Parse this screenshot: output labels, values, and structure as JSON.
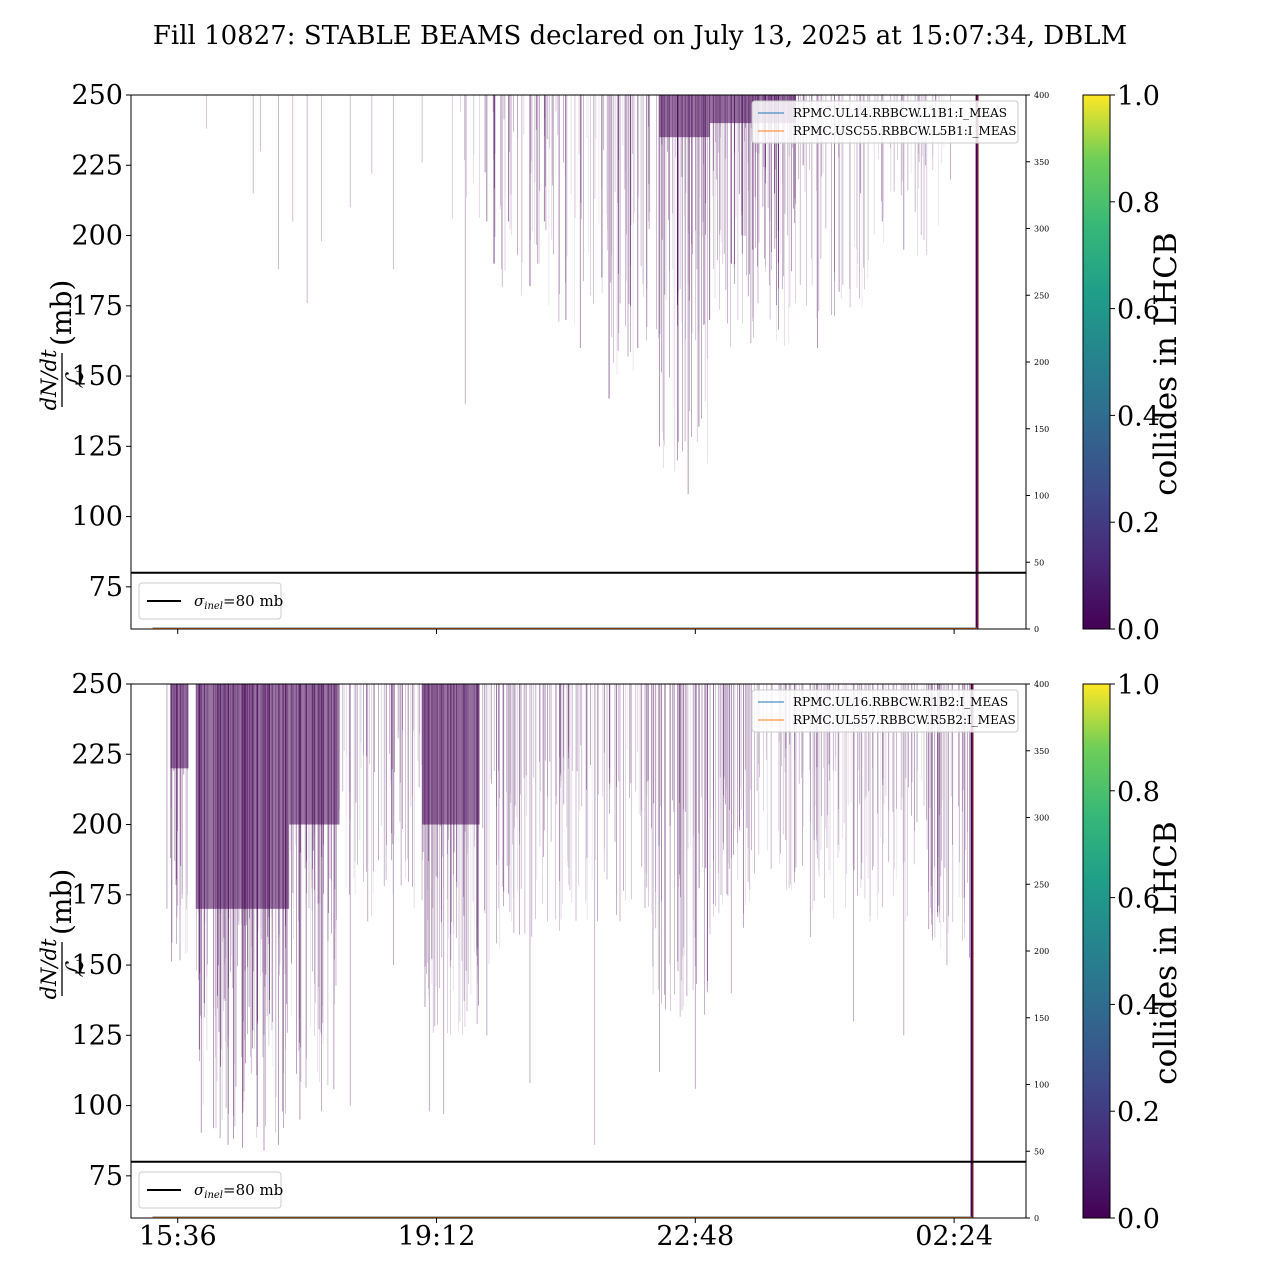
{
  "title": "Fill 10827: STABLE BEAMS declared on July 13, 2025 at 15:07:34, DBLM",
  "chart_data": [
    {
      "type": "line",
      "panel": "top",
      "ylabel": "dN/dt / ℒ (mb)",
      "ylim": [
        60,
        250
      ],
      "yticks": [
        "75",
        "100",
        "125",
        "150",
        "175",
        "200",
        "225",
        "250"
      ],
      "ytick_values": [
        75,
        100,
        125,
        150,
        175,
        200,
        225,
        250
      ],
      "y2lim": [
        0,
        400
      ],
      "y2ticks": [
        "0",
        "50",
        "100",
        "150",
        "200",
        "250",
        "300",
        "350",
        "400"
      ],
      "y2tick_values": [
        0,
        50,
        100,
        150,
        200,
        250,
        300,
        350,
        400
      ],
      "xlim_hours": [
        14.95,
        27.4
      ],
      "xticks": [],
      "xtick_hours": [
        15.6,
        19.2,
        22.8,
        26.4
      ],
      "legend": [
        {
          "name": "RPMC.UL14.RBBCW.L1B1:I_MEAS",
          "color": "#1f77b4"
        },
        {
          "name": "RPMC.USC55.RBBCW.L5B1:I_MEAS",
          "color": "#ff7f0e"
        }
      ],
      "sigma_line": {
        "value": 80,
        "label_sym": "σ",
        "label_sub": "inel",
        "label_rest": "=80 mb"
      },
      "colorbar": {
        "label": "collides in LHCB",
        "range": [
          0.0,
          1.0
        ],
        "ticks": [
          "0.0",
          "0.2",
          "0.4",
          "0.6",
          "0.8",
          "1.0"
        ]
      },
      "spikes": [
        {
          "t": 16.0,
          "min": 238,
          "op": 0.25
        },
        {
          "t": 16.65,
          "min": 215,
          "op": 0.35
        },
        {
          "t": 16.75,
          "min": 230,
          "op": 0.3
        },
        {
          "t": 17.0,
          "min": 188,
          "op": 0.35
        },
        {
          "t": 17.2,
          "min": 205,
          "op": 0.3
        },
        {
          "t": 17.4,
          "min": 176,
          "op": 0.35
        },
        {
          "t": 17.6,
          "min": 198,
          "op": 0.3
        },
        {
          "t": 18.0,
          "min": 210,
          "op": 0.3
        },
        {
          "t": 18.3,
          "min": 222,
          "op": 0.3
        },
        {
          "t": 18.6,
          "min": 188,
          "op": 0.3
        },
        {
          "t": 19.0,
          "min": 226,
          "op": 0.3
        },
        {
          "t": 19.6,
          "min": 140,
          "op": 0.35
        },
        {
          "t": 19.9,
          "min": 205,
          "op": 0.6
        },
        {
          "t": 20.0,
          "min": 190,
          "op": 0.9
        },
        {
          "t": 20.2,
          "min": 205,
          "op": 0.6
        },
        {
          "t": 20.5,
          "min": 182,
          "op": 0.7
        },
        {
          "t": 20.7,
          "min": 205,
          "op": 0.6
        },
        {
          "t": 21.0,
          "min": 170,
          "op": 0.6
        },
        {
          "t": 21.2,
          "min": 160,
          "op": 0.5
        },
        {
          "t": 21.5,
          "min": 185,
          "op": 0.6
        },
        {
          "t": 21.6,
          "min": 142,
          "op": 0.7
        },
        {
          "t": 21.9,
          "min": 175,
          "op": 0.6
        },
        {
          "t": 22.0,
          "min": 160,
          "op": 0.6
        },
        {
          "t": 22.3,
          "min": 125,
          "op": 0.5
        },
        {
          "t": 22.55,
          "min": 120,
          "op": 0.5
        },
        {
          "t": 22.7,
          "min": 108,
          "op": 0.5
        },
        {
          "t": 22.85,
          "min": 132,
          "op": 0.6
        },
        {
          "t": 23.0,
          "min": 170,
          "op": 0.7
        },
        {
          "t": 23.3,
          "min": 190,
          "op": 0.8
        },
        {
          "t": 23.6,
          "min": 195,
          "op": 0.7
        },
        {
          "t": 23.9,
          "min": 215,
          "op": 0.6
        },
        {
          "t": 24.3,
          "min": 225,
          "op": 0.6
        },
        {
          "t": 24.5,
          "min": 160,
          "op": 0.5
        },
        {
          "t": 24.8,
          "min": 180,
          "op": 0.5
        },
        {
          "t": 25.1,
          "min": 215,
          "op": 0.5
        },
        {
          "t": 25.4,
          "min": 205,
          "op": 0.5
        },
        {
          "t": 25.7,
          "min": 195,
          "op": 0.5
        },
        {
          "t": 26.0,
          "min": 225,
          "op": 0.4
        },
        {
          "t": 26.35,
          "min": 220,
          "op": 0.4
        }
      ],
      "bands": [
        {
          "t0": 19.4,
          "t1": 19.9,
          "density": 0.18,
          "min_lo": 200,
          "min_hi": 245
        },
        {
          "t0": 19.9,
          "t1": 20.9,
          "density": 0.45,
          "min_lo": 175,
          "min_hi": 245
        },
        {
          "t0": 20.9,
          "t1": 21.5,
          "density": 0.35,
          "min_lo": 165,
          "min_hi": 245
        },
        {
          "t0": 21.5,
          "t1": 22.3,
          "density": 0.6,
          "min_lo": 150,
          "min_hi": 240
        },
        {
          "t0": 22.3,
          "t1": 23.0,
          "density": 0.85,
          "min_lo": 115,
          "min_hi": 235
        },
        {
          "t0": 23.0,
          "t1": 24.2,
          "density": 0.9,
          "min_lo": 160,
          "min_hi": 240
        },
        {
          "t0": 24.2,
          "t1": 25.2,
          "density": 0.4,
          "min_lo": 170,
          "min_hi": 245
        },
        {
          "t0": 25.2,
          "t1": 26.3,
          "density": 0.35,
          "min_lo": 190,
          "min_hi": 248
        }
      ],
      "dump_hour": 26.72
    },
    {
      "type": "line",
      "panel": "bottom",
      "ylabel": "dN/dt / ℒ (mb)",
      "ylim": [
        60,
        250
      ],
      "yticks": [
        "75",
        "100",
        "125",
        "150",
        "175",
        "200",
        "225",
        "250"
      ],
      "ytick_values": [
        75,
        100,
        125,
        150,
        175,
        200,
        225,
        250
      ],
      "y2lim": [
        0,
        400
      ],
      "y2ticks": [
        "0",
        "50",
        "100",
        "150",
        "200",
        "250",
        "300",
        "350",
        "400"
      ],
      "y2tick_values": [
        0,
        50,
        100,
        150,
        200,
        250,
        300,
        350,
        400
      ],
      "xlim_hours": [
        14.95,
        27.4
      ],
      "xticks": [
        "15:36",
        "19:12",
        "22:48",
        "02:24"
      ],
      "xtick_hours": [
        15.6,
        19.2,
        22.8,
        26.4
      ],
      "legend": [
        {
          "name": "RPMC.UL16.RBBCW.R1B2:I_MEAS",
          "color": "#1f77b4"
        },
        {
          "name": "RPMC.UL557.RBBCW.R5B2:I_MEAS",
          "color": "#ff7f0e"
        }
      ],
      "sigma_line": {
        "value": 80,
        "label_sym": "σ",
        "label_sub": "inel",
        "label_rest": "=80 mb"
      },
      "colorbar": {
        "label": "collides in LHCB",
        "range": [
          0.0,
          1.0
        ],
        "ticks": [
          "0.0",
          "0.2",
          "0.4",
          "0.6",
          "0.8",
          "1.0"
        ]
      },
      "spikes": [
        {
          "t": 15.45,
          "min": 170,
          "op": 0.4
        },
        {
          "t": 15.9,
          "min": 120,
          "op": 0.6
        },
        {
          "t": 16.1,
          "min": 92,
          "op": 0.5
        },
        {
          "t": 16.3,
          "min": 86,
          "op": 0.5
        },
        {
          "t": 16.5,
          "min": 85,
          "op": 0.5
        },
        {
          "t": 16.8,
          "min": 84,
          "op": 0.5
        },
        {
          "t": 17.0,
          "min": 86,
          "op": 0.5
        },
        {
          "t": 17.3,
          "min": 95,
          "op": 0.5
        },
        {
          "t": 17.6,
          "min": 98,
          "op": 0.4
        },
        {
          "t": 18.0,
          "min": 100,
          "op": 0.4
        },
        {
          "t": 18.6,
          "min": 150,
          "op": 0.4
        },
        {
          "t": 19.1,
          "min": 98,
          "op": 0.4
        },
        {
          "t": 19.3,
          "min": 97,
          "op": 0.4
        },
        {
          "t": 19.9,
          "min": 125,
          "op": 0.4
        },
        {
          "t": 20.5,
          "min": 108,
          "op": 0.4
        },
        {
          "t": 21.4,
          "min": 86,
          "op": 0.35
        },
        {
          "t": 22.3,
          "min": 112,
          "op": 0.4
        },
        {
          "t": 22.8,
          "min": 106,
          "op": 0.4
        },
        {
          "t": 23.3,
          "min": 140,
          "op": 0.4
        },
        {
          "t": 24.4,
          "min": 160,
          "op": 0.4
        },
        {
          "t": 25.0,
          "min": 130,
          "op": 0.4
        },
        {
          "t": 25.7,
          "min": 125,
          "op": 0.4
        },
        {
          "t": 26.3,
          "min": 150,
          "op": 0.4
        }
      ],
      "bands": [
        {
          "t0": 15.5,
          "t1": 15.75,
          "density": 0.9,
          "min_lo": 150,
          "min_hi": 220
        },
        {
          "t0": 15.85,
          "t1": 17.15,
          "density": 1.0,
          "min_lo": 88,
          "min_hi": 170
        },
        {
          "t0": 17.15,
          "t1": 17.85,
          "density": 0.85,
          "min_lo": 105,
          "min_hi": 200
        },
        {
          "t0": 17.85,
          "t1": 18.4,
          "density": 0.5,
          "min_lo": 165,
          "min_hi": 230
        },
        {
          "t0": 18.4,
          "t1": 19.0,
          "density": 0.6,
          "min_lo": 170,
          "min_hi": 235
        },
        {
          "t0": 19.0,
          "t1": 19.8,
          "density": 0.9,
          "min_lo": 125,
          "min_hi": 200
        },
        {
          "t0": 19.8,
          "t1": 21.0,
          "density": 0.6,
          "min_lo": 150,
          "min_hi": 225
        },
        {
          "t0": 21.0,
          "t1": 22.2,
          "density": 0.55,
          "min_lo": 165,
          "min_hi": 230
        },
        {
          "t0": 22.2,
          "t1": 23.0,
          "density": 0.7,
          "min_lo": 130,
          "min_hi": 210
        },
        {
          "t0": 23.0,
          "t1": 23.6,
          "density": 0.75,
          "min_lo": 160,
          "min_hi": 220
        },
        {
          "t0": 23.6,
          "t1": 24.4,
          "density": 0.45,
          "min_lo": 175,
          "min_hi": 235
        },
        {
          "t0": 24.4,
          "t1": 26.0,
          "density": 0.55,
          "min_lo": 165,
          "min_hi": 225
        },
        {
          "t0": 26.0,
          "t1": 26.65,
          "density": 0.75,
          "min_lo": 150,
          "min_hi": 215
        }
      ],
      "dump_hour": 26.65
    }
  ]
}
